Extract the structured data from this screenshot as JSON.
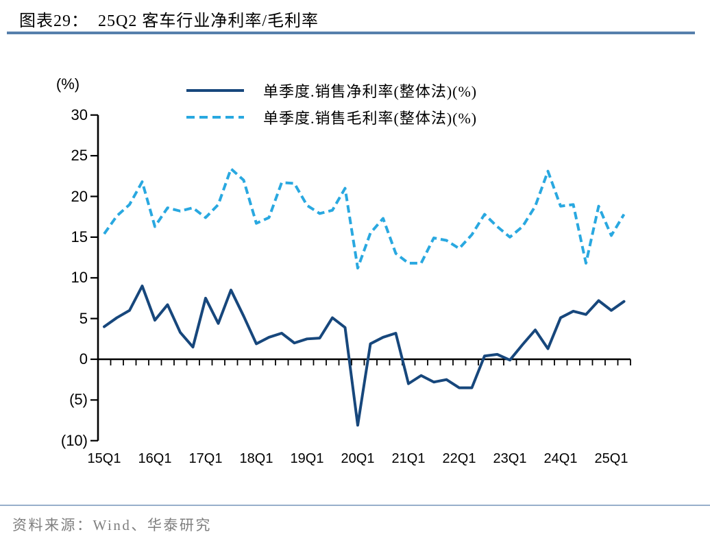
{
  "header": {
    "title": "图表29：  25Q2 客车行业净利率/毛利率"
  },
  "footer": {
    "source": "资料来源：Wind、华泰研究"
  },
  "colors": {
    "net_line": "#17477C",
    "gross_line": "#29A8E0",
    "title_rule": "#567FAC",
    "footer_rule": "#97AECB",
    "axis": "#000000",
    "source_text": "#7F7F7F"
  },
  "chart_data": {
    "type": "line",
    "title": "25Q2 客车行业净利率/毛利率",
    "unit_label": "(%)",
    "ylim": [
      -10,
      30
    ],
    "grid": false,
    "legend_position": "top-center",
    "categories": [
      "15Q1",
      "15Q2",
      "15Q3",
      "15Q4",
      "16Q1",
      "16Q2",
      "16Q3",
      "16Q4",
      "17Q1",
      "17Q2",
      "17Q3",
      "17Q4",
      "18Q1",
      "18Q2",
      "18Q3",
      "18Q4",
      "19Q1",
      "19Q2",
      "19Q3",
      "19Q4",
      "20Q1",
      "20Q2",
      "20Q3",
      "20Q4",
      "21Q1",
      "21Q2",
      "21Q3",
      "21Q4",
      "22Q1",
      "22Q2",
      "22Q3",
      "22Q4",
      "23Q1",
      "23Q2",
      "23Q3",
      "23Q4",
      "24Q1",
      "24Q2",
      "24Q3",
      "24Q4",
      "25Q1",
      "25Q2"
    ],
    "series": [
      {
        "name": "单季度.销售净利率(整体法)(%)",
        "style": "solid",
        "color": "#17477C",
        "values": [
          4.0,
          5.1,
          6.0,
          9.0,
          4.8,
          6.7,
          3.3,
          1.5,
          7.5,
          4.4,
          8.5,
          5.3,
          1.9,
          2.7,
          3.2,
          2.0,
          2.5,
          2.6,
          5.1,
          3.9,
          -8.1,
          1.9,
          2.7,
          3.2,
          -3.0,
          -2.0,
          -2.8,
          -2.5,
          -3.5,
          -3.5,
          0.4,
          0.6,
          -0.1,
          1.8,
          3.6,
          1.3,
          5.1,
          5.9,
          5.5,
          7.2,
          6.0,
          7.1
        ]
      },
      {
        "name": "单季度.销售毛利率(整体法)(%)",
        "style": "dashed",
        "color": "#29A8E0",
        "values": [
          15.4,
          17.6,
          19.0,
          21.8,
          16.3,
          18.6,
          18.2,
          18.6,
          17.4,
          19.0,
          23.4,
          22.0,
          16.7,
          17.4,
          21.7,
          21.6,
          18.9,
          17.9,
          18.3,
          21.0,
          11.2,
          15.5,
          17.3,
          13.0,
          11.8,
          11.8,
          14.9,
          14.6,
          13.6,
          15.3,
          17.8,
          16.3,
          15.0,
          16.3,
          18.8,
          23.1,
          18.8,
          19.0,
          11.8,
          18.8,
          15.2,
          17.8
        ]
      }
    ],
    "y_ticks": [
      {
        "value": 30,
        "label": "30"
      },
      {
        "value": 25,
        "label": "25"
      },
      {
        "value": 20,
        "label": "20"
      },
      {
        "value": 15,
        "label": "15"
      },
      {
        "value": 10,
        "label": "10"
      },
      {
        "value": 5,
        "label": "5"
      },
      {
        "value": 0,
        "label": "0"
      },
      {
        "value": -5,
        "label": "(5)"
      },
      {
        "value": -10,
        "label": "(10)"
      }
    ],
    "x_tick_labels": [
      "15Q1",
      "16Q1",
      "17Q1",
      "18Q1",
      "19Q1",
      "20Q1",
      "21Q1",
      "22Q1",
      "23Q1",
      "24Q1",
      "25Q1"
    ],
    "x_tick_every": 4
  }
}
